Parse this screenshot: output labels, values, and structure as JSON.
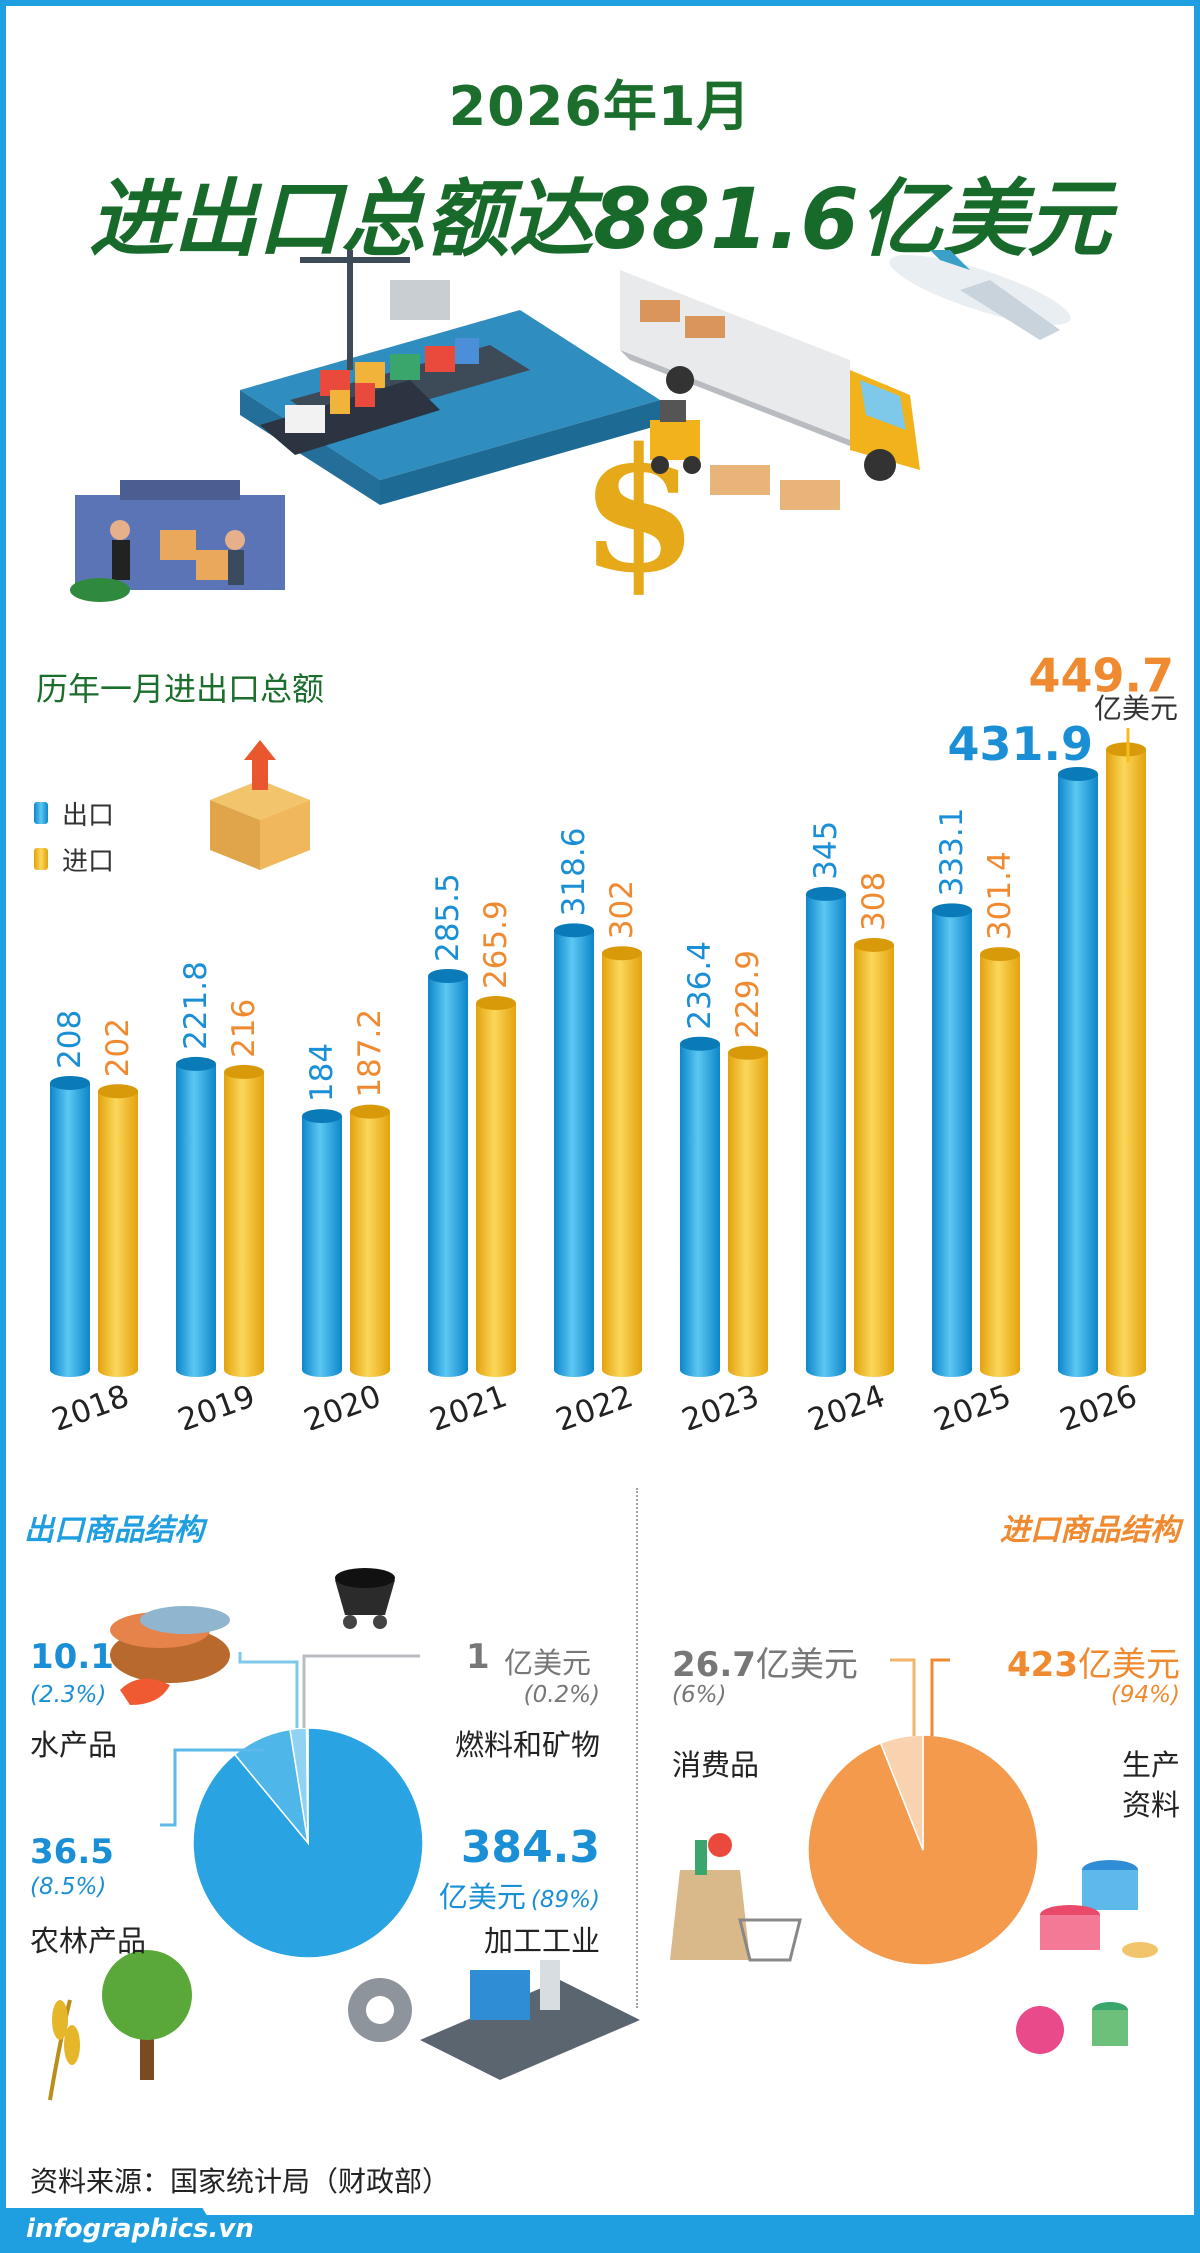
{
  "header": {
    "subtitle": "2026年1月",
    "title": "进出口总额达881.6亿美元"
  },
  "colors": {
    "export": "#1fa6e6",
    "import": "#f5bd1f",
    "export_label": "#1b8fd6",
    "import_label": "#f08a30",
    "title_green": "#1b6e2c",
    "frame": "#1f9fe0",
    "pie_export": "#2aa3e3",
    "pie_import": "#f39a4d"
  },
  "chart_data": {
    "type": "bar",
    "title": "历年一月进出口总额",
    "categories": [
      "2018",
      "2019",
      "2020",
      "2021",
      "2022",
      "2023",
      "2024",
      "2025",
      "2026"
    ],
    "series": [
      {
        "name": "出口",
        "values": [
          208,
          221.8,
          184,
          285.5,
          318.6,
          236.4,
          345,
          333.1,
          431.9
        ]
      },
      {
        "name": "进口",
        "values": [
          202,
          216,
          187.2,
          265.9,
          302,
          229.9,
          308,
          301.4,
          449.7
        ]
      }
    ],
    "value_labels": {
      "export": [
        "208",
        "221.8",
        "184",
        "285.5",
        "318.6",
        "236.4",
        "345",
        "333.1",
        "431.9"
      ],
      "import": [
        "202",
        "216",
        "187.2",
        "265.9",
        "302",
        "229.9",
        "308",
        "301.4",
        "449.7"
      ]
    },
    "unit_label": "亿美元",
    "legend_position": "left"
  },
  "export_structure": {
    "title": "出口商品结构",
    "items": [
      {
        "value": "10.1",
        "pct": "(2.3%)",
        "label": "水产品",
        "share": 2.3
      },
      {
        "value": "1",
        "unit": "亿美元",
        "pct": "(0.2%)",
        "label": "燃料和矿物",
        "share": 0.2
      },
      {
        "value": "36.5",
        "pct": "(8.5%)",
        "label": "农林产品",
        "share": 8.5
      },
      {
        "value": "384.3",
        "unit": "亿美元",
        "pct": "(89%)",
        "label": "加工工业",
        "share": 89
      }
    ]
  },
  "import_structure": {
    "title": "进口商品结构",
    "items": [
      {
        "value": "26.7",
        "unit": "亿美元",
        "pct": "(6%)",
        "label": "消费品",
        "share": 6
      },
      {
        "value": "423",
        "unit": "亿美元",
        "pct": "(94%)",
        "label_line1": "生产",
        "label_line2": "资料",
        "share": 94
      }
    ]
  },
  "footer": {
    "source": "资料来源：国家统计局（财政部）",
    "brand": "infographics.vn"
  },
  "icons": [
    "port-ship-icon",
    "dollar-sign-icon",
    "truck-icon",
    "forklift-icon",
    "airplane-icon",
    "workers-warehouse-icon",
    "box-arrow-icon",
    "seafood-basket-icon",
    "coal-cart-icon",
    "rice-plant-icon",
    "tree-icon",
    "gear-piston-icon",
    "factory-icon",
    "shopping-bag-icon",
    "thread-spools-icon"
  ]
}
